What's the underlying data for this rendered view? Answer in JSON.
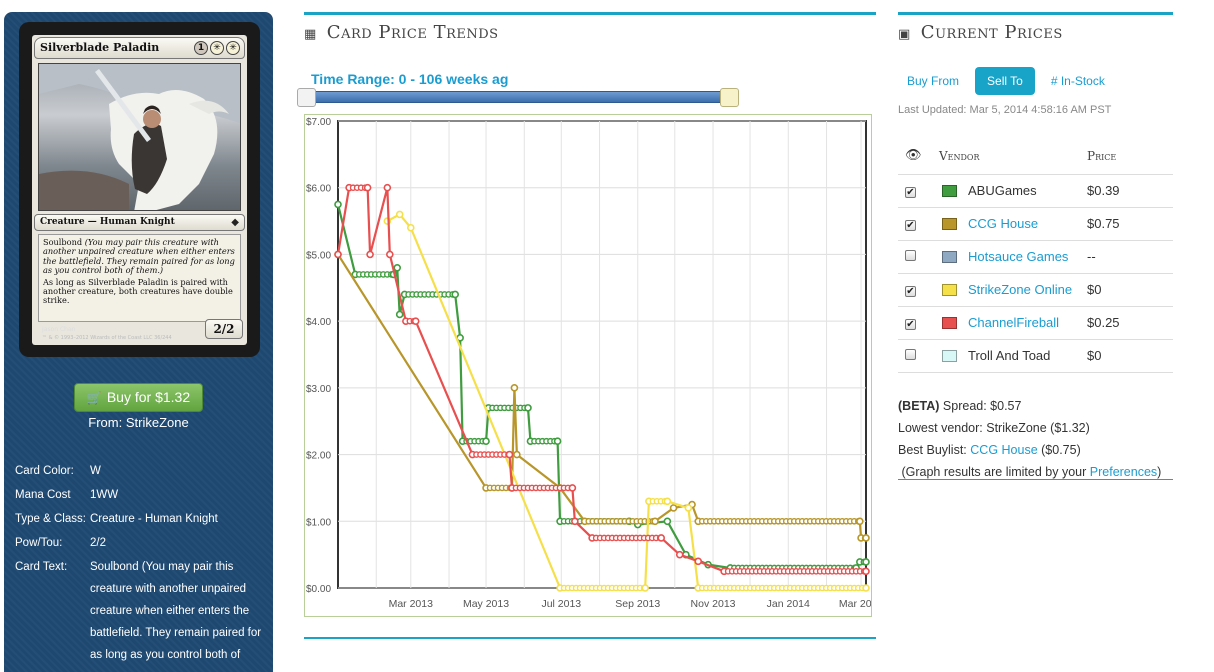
{
  "card": {
    "name": "Silverblade Paladin",
    "mana": [
      "1",
      "W",
      "W"
    ],
    "type_line": "Creature — Human Knight",
    "set_icon": "set-symbol-icon",
    "rules_text": {
      "keyword": "Soulbond",
      "reminder": "(You may pair this creature with another unpaired creature when either enters the battlefield. They remain paired for as long as you control both of them.)",
      "ability": "As long as Silverblade Paladin is paired with another creature, both creatures have double strike."
    },
    "pt": "2/2",
    "artist": "Jason Chan",
    "copyright": "™ & © 1993–2012 Wizards of the Coast LLC 36/244"
  },
  "buy": {
    "icon": "shopping-cart-icon",
    "label": "Buy for $1.32",
    "from": "From: StrikeZone"
  },
  "info": [
    {
      "key": "Card Color:",
      "value": "W"
    },
    {
      "key": "Mana Cost",
      "value": "1WW"
    },
    {
      "key": "Type & Class:",
      "value": "Creature - Human Knight"
    },
    {
      "key": "Pow/Tou:",
      "value": "2/2"
    },
    {
      "key": "Card Text:",
      "value": "Soulbond (You may pair this creature with another unpaired creature when either enters the battlefield. They remain paired for as long as you control both of"
    }
  ],
  "trends": {
    "title": "Card Price Trends",
    "icon": "calendar-icon",
    "time_range_label": "Time Range: 0 - 106 weeks ag",
    "slider": {
      "min": 0,
      "max": 106,
      "selected": [
        0,
        106
      ]
    }
  },
  "chart_data": {
    "type": "line",
    "ylim": [
      0,
      7
    ],
    "y_ticks": [
      "$0.00",
      "$1.00",
      "$2.00",
      "$3.00",
      "$4.00",
      "$5.00",
      "$6.00",
      "$7.00"
    ],
    "x_tick_labels": [
      "Mar 2013",
      "May 2013",
      "Jul 2013",
      "Sep 2013",
      "Nov 2013",
      "Jan 2014",
      "Mar 2014"
    ],
    "xlim": [
      "2013-01-01",
      "2014-03-05"
    ],
    "grid": true,
    "series": [
      {
        "vendor": "ABUGames",
        "color": "#3f9c3f",
        "points": [
          [
            "2013-01-01",
            5.75
          ],
          [
            "2013-01-15",
            4.7
          ],
          [
            "2013-02-15",
            4.7
          ],
          [
            "2013-02-18",
            4.8
          ],
          [
            "2013-02-20",
            4.1
          ],
          [
            "2013-02-24",
            4.4
          ],
          [
            "2013-04-06",
            4.4
          ],
          [
            "2013-04-10",
            3.75
          ],
          [
            "2013-04-12",
            2.2
          ],
          [
            "2013-05-01",
            2.2
          ],
          [
            "2013-05-03",
            2.7
          ],
          [
            "2013-06-04",
            2.7
          ],
          [
            "2013-06-06",
            2.2
          ],
          [
            "2013-06-28",
            2.2
          ],
          [
            "2013-06-30",
            1.0
          ],
          [
            "2013-08-25",
            1.0
          ],
          [
            "2013-09-01",
            0.95
          ],
          [
            "2013-09-25",
            1.0
          ],
          [
            "2013-10-10",
            0.5
          ],
          [
            "2013-10-28",
            0.35
          ],
          [
            "2013-11-15",
            0.3
          ],
          [
            "2014-02-25",
            0.3
          ],
          [
            "2014-02-28",
            0.39
          ],
          [
            "2014-03-05",
            0.39
          ]
        ]
      },
      {
        "vendor": "CCG House",
        "color": "#b8962a",
        "points": [
          [
            "2013-01-01",
            5.0
          ],
          [
            "2013-05-01",
            1.5
          ],
          [
            "2013-05-22",
            1.5
          ],
          [
            "2013-05-24",
            3.0
          ],
          [
            "2013-05-26",
            2.0
          ],
          [
            "2013-06-30",
            1.5
          ],
          [
            "2013-07-20",
            1.0
          ],
          [
            "2013-09-15",
            1.0
          ],
          [
            "2013-09-30",
            1.2
          ],
          [
            "2013-10-15",
            1.25
          ],
          [
            "2013-10-20",
            1.0
          ],
          [
            "2014-02-28",
            1.0
          ],
          [
            "2014-03-01",
            0.75
          ],
          [
            "2014-03-05",
            0.75
          ]
        ]
      },
      {
        "vendor": "StrikeZone Online",
        "color": "#f5e04a",
        "points": [
          [
            "2013-02-10",
            5.5
          ],
          [
            "2013-02-20",
            5.6
          ],
          [
            "2013-03-01",
            5.4
          ],
          [
            "2013-06-30",
            0.0
          ],
          [
            "2013-09-07",
            0.0
          ],
          [
            "2013-09-10",
            1.3
          ],
          [
            "2013-09-25",
            1.3
          ],
          [
            "2013-10-12",
            1.2
          ],
          [
            "2013-10-20",
            0.0
          ],
          [
            "2014-03-05",
            0.0
          ]
        ]
      },
      {
        "vendor": "ChannelFireball",
        "color": "#e84f4f",
        "points": [
          [
            "2013-01-01",
            5.0
          ],
          [
            "2013-01-10",
            6.0
          ],
          [
            "2013-01-25",
            6.0
          ],
          [
            "2013-01-27",
            5.0
          ],
          [
            "2013-02-10",
            6.0
          ],
          [
            "2013-02-12",
            5.0
          ],
          [
            "2013-02-25",
            4.0
          ],
          [
            "2013-03-05",
            4.0
          ],
          [
            "2013-04-20",
            2.0
          ],
          [
            "2013-05-20",
            2.0
          ],
          [
            "2013-05-22",
            1.5
          ],
          [
            "2013-07-10",
            1.5
          ],
          [
            "2013-07-12",
            1.0
          ],
          [
            "2013-07-26",
            0.75
          ],
          [
            "2013-09-20",
            0.75
          ],
          [
            "2013-10-05",
            0.5
          ],
          [
            "2013-10-20",
            0.4
          ],
          [
            "2013-11-10",
            0.25
          ],
          [
            "2014-03-05",
            0.25
          ]
        ]
      }
    ]
  },
  "prices": {
    "title": "Current Prices",
    "icon": "money-icon",
    "tabs": [
      {
        "label": "Buy From",
        "active": false
      },
      {
        "label": "Sell To",
        "active": true
      },
      {
        "label": "# In-Stock",
        "active": false
      }
    ],
    "last_updated": "Last Updated: Mar 5, 2014 4:58:16 AM PST",
    "columns": {
      "visible_icon": "eye-icon",
      "vendor": "Vendor",
      "price": "Price"
    },
    "vendors": [
      {
        "name": "ABUGames",
        "price": "$0.39",
        "checked": true,
        "color": "#3f9c3f",
        "link": false
      },
      {
        "name": "CCG House",
        "price": "$0.75",
        "checked": true,
        "color": "#b8962a",
        "link": true
      },
      {
        "name": "Hotsauce Games",
        "price": "--",
        "checked": false,
        "color": "#8fa9c2",
        "link": true
      },
      {
        "name": "StrikeZone Online",
        "price": "$0",
        "checked": true,
        "color": "#f5e04a",
        "link": true
      },
      {
        "name": "ChannelFireball",
        "price": "$0.25",
        "checked": true,
        "color": "#e84f4f",
        "link": true
      },
      {
        "name": "Troll And Toad",
        "price": "$0",
        "checked": false,
        "color": "#d8f7f7",
        "link": false
      }
    ],
    "spread": {
      "beta_label": "(BETA)",
      "spread_label": "Spread: $0.57",
      "lowest_vendor": "Lowest vendor: StrikeZone ($1.32)",
      "best_buylist_prefix": "Best Buylist:",
      "best_buylist_vendor": "CCG House",
      "best_buylist_value": "($0.75)",
      "note_prefix": "(Graph results are limited by your",
      "note_link": "Preferences",
      "note_suffix": ")"
    }
  }
}
